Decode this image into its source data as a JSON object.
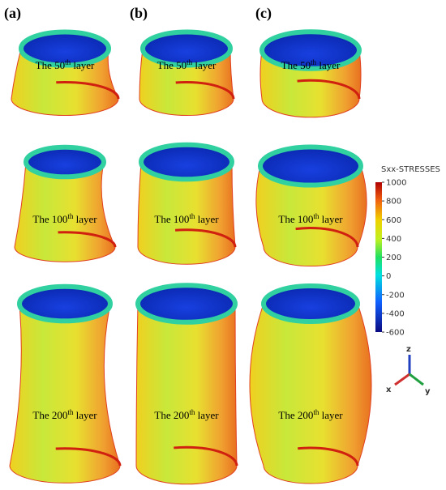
{
  "panels": [
    {
      "label": "(a)",
      "layers": [
        {
          "prefix": "The 50",
          "sup": "th",
          "suffix": " layer"
        },
        {
          "prefix": "The 100",
          "sup": "th",
          "suffix": " layer"
        },
        {
          "prefix": "The 200",
          "sup": "th",
          "suffix": " layer"
        }
      ]
    },
    {
      "label": "(b)",
      "layers": [
        {
          "prefix": "The 50",
          "sup": "th",
          "suffix": " layer"
        },
        {
          "prefix": "The 100",
          "sup": "th",
          "suffix": " layer"
        },
        {
          "prefix": "The 200",
          "sup": "th",
          "suffix": " layer"
        }
      ]
    },
    {
      "label": "(c)",
      "layers": [
        {
          "prefix": "The 50",
          "sup": "th",
          "suffix": " layer"
        },
        {
          "prefix": "The 100",
          "sup": "th",
          "suffix": " layer"
        },
        {
          "prefix": "The 200",
          "sup": "th",
          "suffix": " layer"
        }
      ]
    }
  ],
  "colorbar": {
    "title": "Sxx-STRESSES",
    "ticks": [
      1000,
      800,
      600,
      400,
      200,
      0,
      -200,
      -400,
      -600
    ]
  },
  "axes": {
    "z": "z",
    "x": "x",
    "y": "y"
  }
}
